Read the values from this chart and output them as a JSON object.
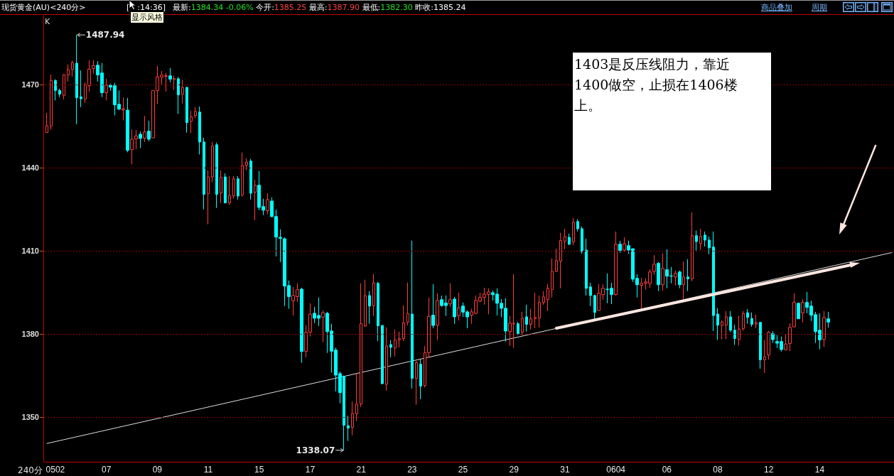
{
  "chart_data": {
    "type": "candlestick",
    "title": "现货黄金(AU)<240分>",
    "subtitle": "最新:1384.34 -0.06% 今开:1385.25 最高:1387.90 最低:1382.30 昨收:1385.24",
    "xlabel": "240分",
    "categories": [
      null,
      null,
      "0502",
      null,
      null,
      null,
      null,
      null,
      null,
      null,
      null,
      null,
      null,
      null,
      "07",
      null,
      null,
      null,
      null,
      null,
      null,
      null,
      null,
      null,
      null,
      null,
      "09",
      null,
      null,
      null,
      null,
      null,
      null,
      null,
      null,
      null,
      null,
      null,
      "11",
      null,
      null,
      null,
      null,
      null,
      null,
      null,
      null,
      null,
      null,
      null,
      "15",
      null,
      null,
      null,
      null,
      null,
      null,
      null,
      null,
      null,
      null,
      null,
      "17",
      null,
      null,
      null,
      null,
      null,
      null,
      null,
      null,
      null,
      null,
      null,
      "21",
      null,
      null,
      null,
      null,
      null,
      null,
      null,
      null,
      null,
      null,
      null,
      "23",
      null,
      null,
      null,
      null,
      null,
      null,
      null,
      null,
      null,
      null,
      null,
      "25",
      null,
      null,
      null,
      null,
      null,
      null,
      null,
      null,
      null,
      null,
      null,
      "29",
      null,
      null,
      null,
      null,
      null,
      null,
      null,
      null,
      null,
      null,
      null,
      "31",
      null,
      null,
      null,
      null,
      null,
      null,
      null,
      null,
      null,
      null,
      null,
      "0604",
      null,
      null,
      null,
      null,
      null,
      null,
      null,
      null,
      null,
      null,
      null,
      "06",
      null,
      null,
      null,
      null,
      null,
      null,
      null,
      null,
      null,
      null,
      null,
      "08",
      null,
      null,
      null,
      null,
      null,
      null,
      null,
      null,
      null,
      null,
      null,
      "12",
      null,
      null,
      null,
      null,
      null,
      null,
      null,
      null,
      null,
      null,
      null,
      "14",
      null,
      null,
      null,
      null,
      null,
      null,
      null,
      null,
      null,
      null,
      null,
      null,
      null,
      null,
      null,
      null,
      null
    ],
    "ohlc": [
      [
        1452.7,
        1459.8,
        1452.7,
        1455.2
      ],
      [
        1455.1,
        1473.6,
        1453.7,
        1471.5
      ],
      [
        1471.5,
        1471.9,
        1464.3,
        1467.9
      ],
      [
        1467.9,
        1468.5,
        1465.5,
        1466.6
      ],
      [
        1466.1,
        1473.7,
        1464.7,
        1473.6
      ],
      [
        1473.5,
        1477.3,
        1471.1,
        1475.4
      ],
      [
        1475.5,
        1478.7,
        1472.9,
        1477.9
      ],
      [
        1477.7,
        1487.94,
        1455.7,
        1465.3
      ],
      [
        1465.6,
        1475.1,
        1461.9,
        1464.9
      ],
      [
        1464.8,
        1470.8,
        1463.4,
        1470.0
      ],
      [
        1469.6,
        1478.8,
        1467.5,
        1475.6
      ],
      [
        1475.8,
        1478.8,
        1473.9,
        1476.9
      ],
      [
        1477.0,
        1478.5,
        1471.1,
        1473.5
      ],
      [
        1474.2,
        1477.8,
        1465.5,
        1467.1
      ],
      [
        1467.1,
        1472.1,
        1464.3,
        1469.8
      ],
      [
        1469.8,
        1470.3,
        1467.8,
        1469.1
      ],
      [
        1469.6,
        1470.6,
        1458.9,
        1462.7
      ],
      [
        1462.9,
        1467.9,
        1460.8,
        1461.2
      ],
      [
        1460.9,
        1465.4,
        1457.1,
        1461.3
      ],
      [
        1460.8,
        1465.2,
        1445.6,
        1446.3
      ],
      [
        1446.6,
        1453.8,
        1441.2,
        1450.3
      ],
      [
        1450.4,
        1453.6,
        1446.6,
        1451.5
      ],
      [
        1452.1,
        1453.1,
        1447.1,
        1450.6
      ],
      [
        1450.7,
        1458.7,
        1449.3,
        1452.9
      ],
      [
        1453.2,
        1457.0,
        1449.6,
        1450.3
      ],
      [
        1450.8,
        1467.9,
        1450.8,
        1467.9
      ],
      [
        1467.9,
        1476.7,
        1463.0,
        1472.8
      ],
      [
        1472.7,
        1474.9,
        1470.1,
        1473.4
      ],
      [
        1473.0,
        1474.3,
        1467.5,
        1473.2
      ],
      [
        1473.2,
        1476.0,
        1470.8,
        1472.0
      ],
      [
        1471.8,
        1473.2,
        1468.1,
        1472.2
      ],
      [
        1472.1,
        1472.8,
        1459.4,
        1466.3
      ],
      [
        1466.6,
        1471.8,
        1463.2,
        1469.0
      ],
      [
        1469.0,
        1469.2,
        1452.7,
        1456.3
      ],
      [
        1456.8,
        1460.6,
        1452.5,
        1458.4
      ],
      [
        1458.9,
        1461.9,
        1457.9,
        1460.3
      ],
      [
        1460.1,
        1462.1,
        1444.8,
        1449.3
      ],
      [
        1449.3,
        1450.8,
        1425.0,
        1430.4
      ],
      [
        1430.7,
        1439.1,
        1419.6,
        1436.7
      ],
      [
        1436.7,
        1449.3,
        1434.8,
        1447.8
      ],
      [
        1448.3,
        1449.1,
        1425.5,
        1430.4
      ],
      [
        1430.9,
        1439.1,
        1427.3,
        1436.5
      ],
      [
        1436.7,
        1438.0,
        1427.3,
        1427.3
      ],
      [
        1427.3,
        1437.0,
        1426.6,
        1430.0
      ],
      [
        1429.9,
        1437.0,
        1429.0,
        1436.0
      ],
      [
        1436.0,
        1437.0,
        1428.5,
        1429.8
      ],
      [
        1430.2,
        1445.5,
        1429.6,
        1440.8
      ],
      [
        1440.9,
        1443.4,
        1439.1,
        1442.1
      ],
      [
        1442.4,
        1443.2,
        1428.5,
        1430.8
      ],
      [
        1431.2,
        1435.7,
        1421.1,
        1433.7
      ],
      [
        1433.7,
        1438.8,
        1424.7,
        1425.7
      ],
      [
        1426.0,
        1428.8,
        1422.9,
        1424.7
      ],
      [
        1424.5,
        1430.8,
        1423.2,
        1428.5
      ],
      [
        1428.0,
        1429.3,
        1422.1,
        1422.4
      ],
      [
        1422.4,
        1424.9,
        1408.0,
        1415.0
      ],
      [
        1414.9,
        1417.8,
        1406.0,
        1414.5
      ],
      [
        1414.4,
        1414.9,
        1390.1,
        1397.3
      ],
      [
        1397.5,
        1399.3,
        1389.1,
        1393.5
      ],
      [
        1392.0,
        1397.0,
        1386.7,
        1393.9
      ],
      [
        1393.5,
        1398.3,
        1391.6,
        1396.0
      ],
      [
        1396.2,
        1396.7,
        1369.6,
        1373.7
      ],
      [
        1373.8,
        1383.2,
        1371.6,
        1380.6
      ],
      [
        1380.7,
        1391.1,
        1379.1,
        1387.2
      ],
      [
        1387.5,
        1389.8,
        1384.0,
        1385.7
      ],
      [
        1386.7,
        1393.2,
        1382.9,
        1385.7
      ],
      [
        1386.1,
        1388.5,
        1377.1,
        1387.7
      ],
      [
        1387.5,
        1388.0,
        1373.2,
        1380.9
      ],
      [
        1381.1,
        1383.7,
        1366.1,
        1373.8
      ],
      [
        1374.2,
        1375.1,
        1359.3,
        1365.2
      ],
      [
        1365.7,
        1366.5,
        1355.0,
        1358.9
      ],
      [
        1364.8,
        1365.0,
        1338.07,
        1347.1
      ],
      [
        1346.9,
        1350.5,
        1341.4,
        1346.1
      ],
      [
        1346.3,
        1355.7,
        1343.5,
        1351.3
      ],
      [
        1351.2,
        1365.7,
        1348.6,
        1354.7
      ],
      [
        1354.8,
        1398.3,
        1353.7,
        1383.8
      ],
      [
        1382.9,
        1399.6,
        1382.6,
        1393.8
      ],
      [
        1393.9,
        1395.5,
        1383.7,
        1390.1
      ],
      [
        1390.2,
        1401.6,
        1386.5,
        1398.5
      ],
      [
        1398.3,
        1398.8,
        1377.5,
        1383.0
      ],
      [
        1383.1,
        1383.1,
        1361.9,
        1362.1
      ],
      [
        1361.9,
        1382.4,
        1359.6,
        1375.7
      ],
      [
        1376.2,
        1377.8,
        1371.6,
        1375.2
      ],
      [
        1375.0,
        1381.6,
        1371.9,
        1377.8
      ],
      [
        1377.9,
        1380.9,
        1375.2,
        1378.3
      ],
      [
        1378.4,
        1390.3,
        1377.5,
        1384.1
      ],
      [
        1384.3,
        1398.6,
        1383.2,
        1387.4
      ],
      [
        1387.2,
        1413.7,
        1360.3,
        1364.0
      ],
      [
        1364.0,
        1370.3,
        1354.5,
        1369.7
      ],
      [
        1369.1,
        1370.8,
        1356.5,
        1361.2
      ],
      [
        1361.4,
        1375.6,
        1360.7,
        1373.3
      ],
      [
        1373.3,
        1393.2,
        1371.5,
        1386.4
      ],
      [
        1386.8,
        1398.0,
        1382.1,
        1383.1
      ],
      [
        1383.2,
        1394.7,
        1377.8,
        1392.1
      ],
      [
        1392.4,
        1393.9,
        1389.8,
        1390.3
      ],
      [
        1391.2,
        1393.9,
        1386.5,
        1390.3
      ],
      [
        1390.9,
        1398.3,
        1389.8,
        1392.4
      ],
      [
        1392.6,
        1393.4,
        1383.7,
        1386.2
      ],
      [
        1386.6,
        1394.9,
        1384.9,
        1389.5
      ],
      [
        1390.1,
        1391.4,
        1386.2,
        1387.9
      ],
      [
        1388.0,
        1388.5,
        1382.1,
        1386.2
      ],
      [
        1386.8,
        1389.1,
        1383.7,
        1388.0
      ],
      [
        1387.5,
        1393.9,
        1387.2,
        1392.1
      ],
      [
        1391.9,
        1394.9,
        1391.4,
        1393.2
      ],
      [
        1393.2,
        1396.7,
        1390.6,
        1394.4
      ],
      [
        1394.3,
        1396.5,
        1387.1,
        1395.2
      ],
      [
        1394.9,
        1395.7,
        1392.1,
        1394.2
      ],
      [
        1394.4,
        1396.5,
        1386.7,
        1391.1
      ],
      [
        1391.1,
        1392.6,
        1386.1,
        1389.3
      ],
      [
        1389.3,
        1392.9,
        1377.3,
        1381.1
      ],
      [
        1380.9,
        1386.5,
        1375.7,
        1383.9
      ],
      [
        1383.6,
        1401.6,
        1375.0,
        1383.9
      ],
      [
        1383.7,
        1384.4,
        1379.6,
        1380.1
      ],
      [
        1380.7,
        1388.0,
        1379.6,
        1385.7
      ],
      [
        1386.2,
        1390.6,
        1380.9,
        1383.5
      ],
      [
        1383.5,
        1389.1,
        1381.6,
        1385.5
      ],
      [
        1385.6,
        1394.9,
        1382.1,
        1386.0
      ],
      [
        1385.8,
        1393.9,
        1382.4,
        1391.4
      ],
      [
        1391.4,
        1395.5,
        1390.6,
        1393.4
      ],
      [
        1392.5,
        1398.0,
        1388.3,
        1396.5
      ],
      [
        1396.1,
        1407.3,
        1393.2,
        1402.6
      ],
      [
        1402.6,
        1410.8,
        1402.4,
        1406.5
      ],
      [
        1406.3,
        1416.5,
        1396.5,
        1413.7
      ],
      [
        1413.5,
        1418.0,
        1410.6,
        1415.2
      ],
      [
        1414.9,
        1416.2,
        1412.1,
        1412.4
      ],
      [
        1413.2,
        1421.9,
        1412.1,
        1420.3
      ],
      [
        1420.6,
        1421.4,
        1417.0,
        1418.0
      ],
      [
        1418.0,
        1418.8,
        1409.0,
        1409.8
      ],
      [
        1410.3,
        1414.4,
        1393.9,
        1396.5
      ],
      [
        1397.0,
        1398.5,
        1390.1,
        1393.9
      ],
      [
        1393.9,
        1394.2,
        1385.2,
        1387.8
      ],
      [
        1388.5,
        1398.0,
        1388.3,
        1394.7
      ],
      [
        1394.2,
        1398.0,
        1392.4,
        1396.5
      ],
      [
        1396.2,
        1401.9,
        1391.1,
        1396.1
      ],
      [
        1396.5,
        1398.5,
        1390.8,
        1394.2
      ],
      [
        1394.2,
        1417.0,
        1393.9,
        1412.4
      ],
      [
        1412.4,
        1413.7,
        1409.3,
        1410.1
      ],
      [
        1410.3,
        1414.9,
        1409.8,
        1412.6
      ],
      [
        1411.9,
        1413.7,
        1409.0,
        1410.3
      ],
      [
        1410.8,
        1410.8,
        1398.8,
        1399.8
      ],
      [
        1400.1,
        1401.6,
        1393.2,
        1397.8
      ],
      [
        1397.6,
        1400.3,
        1389.1,
        1398.3
      ],
      [
        1398.4,
        1400.1,
        1396.0,
        1398.8
      ],
      [
        1398.3,
        1403.4,
        1396.7,
        1402.4
      ],
      [
        1402.6,
        1408.5,
        1401.4,
        1405.2
      ],
      [
        1405.5,
        1406.0,
        1395.5,
        1397.8
      ],
      [
        1397.8,
        1409.1,
        1395.7,
        1403.7
      ],
      [
        1403.2,
        1410.6,
        1396.5,
        1400.9
      ],
      [
        1401.0,
        1404.2,
        1398.3,
        1400.9
      ],
      [
        1400.6,
        1402.9,
        1397.5,
        1401.9
      ],
      [
        1402.4,
        1402.9,
        1396.5,
        1397.8
      ],
      [
        1397.8,
        1406.2,
        1392.4,
        1400.6
      ],
      [
        1400.6,
        1407.0,
        1395.5,
        1399.9
      ],
      [
        1399.9,
        1423.9,
        1399.1,
        1415.5
      ],
      [
        1415.5,
        1417.3,
        1410.1,
        1413.4
      ],
      [
        1412.6,
        1418.0,
        1410.3,
        1415.2
      ],
      [
        1415.7,
        1417.0,
        1411.6,
        1413.9
      ],
      [
        1413.9,
        1415.2,
        1408.8,
        1411.1
      ],
      [
        1411.4,
        1417.0,
        1381.1,
        1386.7
      ],
      [
        1387.2,
        1389.3,
        1377.9,
        1383.2
      ],
      [
        1383.1,
        1384.9,
        1378.1,
        1384.4
      ],
      [
        1383.3,
        1388.3,
        1378.1,
        1386.2
      ],
      [
        1386.2,
        1388.3,
        1380.7,
        1381.4
      ],
      [
        1381.4,
        1383.4,
        1376.1,
        1378.4
      ],
      [
        1378.1,
        1386.5,
        1375.8,
        1381.8
      ],
      [
        1382.0,
        1388.3,
        1381.2,
        1387.4
      ],
      [
        1387.7,
        1389.0,
        1383.7,
        1386.0
      ],
      [
        1385.6,
        1387.8,
        1382.6,
        1383.5
      ],
      [
        1383.6,
        1387.0,
        1382.1,
        1384.1
      ],
      [
        1384.2,
        1384.4,
        1367.5,
        1370.7
      ],
      [
        1370.7,
        1377.8,
        1366.0,
        1371.8
      ],
      [
        1372.5,
        1381.1,
        1370.8,
        1380.6
      ],
      [
        1380.1,
        1381.1,
        1376.8,
        1378.0
      ],
      [
        1377.3,
        1379.6,
        1375.0,
        1376.7
      ],
      [
        1377.3,
        1379.1,
        1373.7,
        1374.4
      ],
      [
        1374.3,
        1379.8,
        1374.3,
        1376.4
      ],
      [
        1376.6,
        1383.9,
        1373.9,
        1382.4
      ],
      [
        1382.6,
        1394.7,
        1382.4,
        1391.4
      ],
      [
        1391.1,
        1391.4,
        1385.5,
        1385.5
      ],
      [
        1387.6,
        1392.6,
        1384.2,
        1391.4
      ],
      [
        1391.4,
        1395.2,
        1387.5,
        1389.6
      ],
      [
        1390.1,
        1392.1,
        1384.7,
        1386.8
      ],
      [
        1387.0,
        1388.0,
        1376.8,
        1380.9
      ],
      [
        1381.4,
        1387.5,
        1374.5,
        1377.9
      ],
      [
        1378.1,
        1388.3,
        1375.3,
        1385.9
      ],
      [
        1385.5,
        1388.0,
        1382.3,
        1384.3
      ],
      null,
      null,
      null,
      null,
      null,
      null,
      null,
      null,
      null,
      null,
      null,
      null,
      null,
      null,
      null
    ],
    "colors": [
      "#ff3c3c",
      "#ff3c3c",
      "#00ffff",
      "#00ffff",
      "#ff3c3c",
      "#ff3c3c",
      "#ff3c3c",
      "#00ffff",
      "#00ffff",
      "#ff3c3c",
      "#ff3c3c",
      "#ff3c3c",
      "#00ffff",
      "#00ffff",
      "#ff3c3c",
      "#00ffff",
      "#00ffff",
      "#00ffff",
      "#ff3c3c",
      "#00ffff",
      "#ff3c3c",
      "#ff3c3c",
      "#00ffff",
      "#ff3c3c",
      "#00ffff",
      "#ff3c3c",
      "#ff3c3c",
      "#ff3c3c",
      "#ff3c3c",
      "#00ffff",
      "#ff3c3c",
      "#00ffff",
      "#ff3c3c",
      "#00ffff",
      "#ff3c3c",
      "#ff3c3c",
      "#00ffff",
      "#00ffff",
      "#ff3c3c",
      "#ff3c3c",
      "#00ffff",
      "#ff3c3c",
      "#00ffff",
      "#ff3c3c",
      "#ff3c3c",
      "#00ffff",
      "#ff3c3c",
      "#ff3c3c",
      "#00ffff",
      "#ff3c3c",
      "#00ffff",
      "#00ffff",
      "#ff3c3c",
      "#00ffff",
      "#00ffff",
      "#00ffff",
      "#00ffff",
      "#00ffff",
      "#ff3c3c",
      "#ff3c3c",
      "#00ffff",
      "#ff3c3c",
      "#ff3c3c",
      "#00ffff",
      "#00ffff",
      "#ff3c3c",
      "#00ffff",
      "#00ffff",
      "#00ffff",
      "#00ffff",
      "#00ffff",
      "#00ffff",
      "#ff3c3c",
      "#ff3c3c",
      "#ff3c3c",
      "#ff3c3c",
      "#00ffff",
      "#ff3c3c",
      "#00ffff",
      "#00ffff",
      "#ff3c3c",
      "#00ffff",
      "#ff3c3c",
      "#ff3c3c",
      "#ff3c3c",
      "#ff3c3c",
      "#00ffff",
      "#ff3c3c",
      "#00ffff",
      "#ff3c3c",
      "#ff3c3c",
      "#00ffff",
      "#ff3c3c",
      "#00ffff",
      "#00ffff",
      "#ff3c3c",
      "#00ffff",
      "#ff3c3c",
      "#00ffff",
      "#00ffff",
      "#ff3c3c",
      "#ff3c3c",
      "#ff3c3c",
      "#ff3c3c",
      "#ff3c3c",
      "#00ffff",
      "#00ffff",
      "#00ffff",
      "#00ffff",
      "#ff3c3c",
      "#ff3c3c",
      "#00ffff",
      "#ff3c3c",
      "#00ffff",
      "#ff3c3c",
      "#ff3c3c",
      "#ff3c3c",
      "#ff3c3c",
      "#ff3c3c",
      "#ff3c3c",
      "#ff3c3c",
      "#ff3c3c",
      "#ff3c3c",
      "#00ffff",
      "#ff3c3c",
      "#00ffff",
      "#00ffff",
      "#00ffff",
      "#00ffff",
      "#00ffff",
      "#ff3c3c",
      "#ff3c3c",
      "#00ffff",
      "#00ffff",
      "#ff3c3c",
      "#00ffff",
      "#ff3c3c",
      "#00ffff",
      "#00ffff",
      "#00ffff",
      "#ff3c3c",
      "#ff3c3c",
      "#ff3c3c",
      "#ff3c3c",
      "#00ffff",
      "#ff3c3c",
      "#00ffff",
      "#00ffff",
      "#ff3c3c",
      "#00ffff",
      "#ff3c3c",
      "#00ffff",
      "#ff3c3c",
      "#00ffff",
      "#ff3c3c",
      "#00ffff",
      "#00ffff",
      "#00ffff",
      "#00ffff",
      "#ff3c3c",
      "#ff3c3c",
      "#00ffff",
      "#00ffff",
      "#ff3c3c",
      "#ff3c3c",
      "#00ffff",
      "#00ffff",
      "#ff3c3c",
      "#00ffff",
      "#ff3c3c",
      "#ff3c3c",
      "#00ffff",
      "#00ffff",
      "#00ffff",
      "#ff3c3c",
      "#ff3c3c",
      "#ff3c3c",
      "#00ffff",
      "#ff3c3c",
      "#00ffff",
      "#00ffff",
      "#00ffff",
      "#00ffff",
      "#ff3c3c",
      "#00ffff",
      null,
      null,
      null,
      null,
      null,
      null,
      null,
      null,
      null,
      null,
      null,
      null,
      null,
      null,
      null
    ],
    "series": [
      {
        "type": "line",
        "color": "#dcdcdc",
        "values": [
          1340.5,
          null,
          null,
          null,
          null,
          null,
          null,
          null,
          null,
          null,
          null,
          null,
          null,
          null,
          null,
          null,
          null,
          null,
          null,
          null,
          null,
          null,
          null,
          null,
          null,
          null,
          null,
          null,
          null,
          null,
          null,
          null,
          null,
          null,
          null,
          null,
          null,
          null,
          null,
          null,
          null,
          null,
          null,
          null,
          null,
          null,
          null,
          null,
          null,
          null,
          null,
          null,
          null,
          null,
          null,
          null,
          null,
          null,
          null,
          null,
          null,
          null,
          null,
          null,
          null,
          null,
          null,
          null,
          null,
          null,
          null,
          null,
          null,
          null,
          null,
          null,
          null,
          null,
          null,
          null,
          null,
          null,
          null,
          null,
          null,
          null,
          null,
          null,
          null,
          null,
          null,
          null,
          null,
          null,
          null,
          null,
          null,
          null,
          null,
          null,
          null,
          null,
          null,
          null,
          null,
          null,
          null,
          null,
          null,
          null,
          null,
          null,
          null,
          null,
          null,
          null,
          null,
          null,
          null,
          null,
          null,
          null,
          null,
          null,
          null,
          null,
          null,
          null,
          null,
          null,
          null,
          null,
          null,
          null,
          null,
          null,
          null,
          null,
          null,
          null,
          null,
          null,
          null,
          null,
          null,
          null,
          null,
          null,
          null,
          null,
          null,
          null,
          null,
          null,
          null,
          null,
          null,
          null,
          null,
          null,
          null,
          null,
          null,
          null,
          null,
          null,
          null,
          null,
          null,
          null,
          null,
          null,
          null,
          null,
          null,
          null,
          null,
          null,
          null,
          null,
          null,
          null,
          null,
          null,
          null,
          null,
          null,
          null,
          null,
          null,
          null,
          null,
          null,
          null,
          null,
          null,
          null,
          null,
          null,
          1409.4
        ]
      }
    ],
    "ylim": [
      1333.9,
      1494.9
    ],
    "yticks": [
      1350,
      1380,
      1410,
      1440,
      1470
    ],
    "grid": "y",
    "annotations": [
      "1487.94",
      "1338.07",
      "1403是反压线阻力，靠近1400做空，止损在1406楼上。",
      "K",
      "[　:14:36]",
      "显示风格",
      "商品叠加",
      "周期"
    ]
  }
}
